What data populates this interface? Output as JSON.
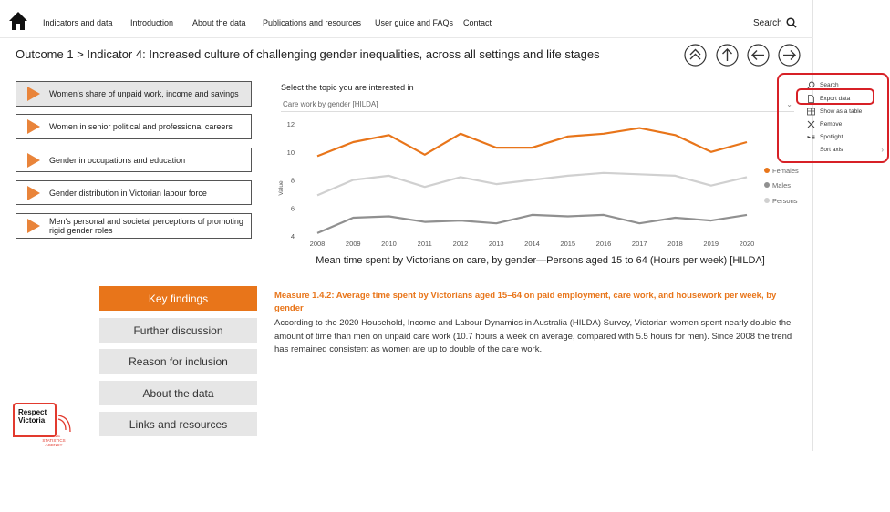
{
  "nav": {
    "home_icon": "home-icon",
    "items": [
      "Indicators and data",
      "Introduction",
      "About the data",
      "Publications and resources",
      "User guide and FAQs",
      "Contact"
    ],
    "search_label": "Search"
  },
  "breadcrumb": "Outcome 1 > Indicator 4: Increased culture of challenging gender inequalities, across all settings and life stages",
  "nav_buttons": [
    "double-chevron-up-icon",
    "arrow-up-icon",
    "arrow-left-icon",
    "arrow-right-icon"
  ],
  "topics": [
    {
      "label": "Women's share of unpaid work, income and savings",
      "active": true
    },
    {
      "label": "Women in senior political and professional careers",
      "active": false
    },
    {
      "label": "Gender in occupations and education",
      "active": false
    },
    {
      "label": "Gender distribution in Victorian labour force",
      "active": false
    },
    {
      "label": "Men's personal and societal perceptions of promoting rigid gender roles",
      "active": false
    }
  ],
  "topic_select": {
    "label": "Select the topic you are interested in",
    "value": "Care work by gender [HILDA]"
  },
  "chart_caption": "Mean time spent by Victorians on care, by gender—Persons aged 15 to 64 (Hours per week) [HILDA]",
  "chart_data": {
    "type": "line",
    "x": [
      2008,
      2009,
      2010,
      2011,
      2012,
      2013,
      2014,
      2015,
      2016,
      2017,
      2018,
      2019,
      2020
    ],
    "series": [
      {
        "name": "Females",
        "color": "#e8751a",
        "values": [
          9.7,
          10.7,
          11.2,
          9.8,
          11.3,
          10.3,
          10.3,
          11.1,
          11.3,
          11.7,
          11.2,
          10.0,
          10.7
        ]
      },
      {
        "name": "Males",
        "color": "#909090",
        "values": [
          4.2,
          5.3,
          5.4,
          5.0,
          5.1,
          4.9,
          5.5,
          5.4,
          5.5,
          4.9,
          5.3,
          5.1,
          5.5
        ]
      },
      {
        "name": "Persons",
        "color": "#d0d0d0",
        "values": [
          6.9,
          8.0,
          8.3,
          7.5,
          8.2,
          7.7,
          8.0,
          8.3,
          8.5,
          8.4,
          8.3,
          7.6,
          8.2
        ]
      }
    ],
    "ylabel": "Value",
    "yticks": [
      4,
      6,
      8,
      10,
      12
    ],
    "ylim": [
      4,
      12
    ],
    "grid": false,
    "legend": "right"
  },
  "side_nav": [
    {
      "label": "Key findings",
      "active": true
    },
    {
      "label": "Further discussion",
      "active": false
    },
    {
      "label": "Reason for inclusion",
      "active": false
    },
    {
      "label": "About the data",
      "active": false
    },
    {
      "label": "Links and resources",
      "active": false
    }
  ],
  "measure": {
    "title": "Measure 1.4.2: Average time spent by Victorians aged 15–64 on paid employment, care work, and housework per week, by gender",
    "body": "According to the 2020 Household, Income and Labour Dynamics in Australia (HILDA) Survey, Victorian women spent nearly double the amount of time than men on unpaid care work (10.7 hours a week on average, compared with 5.5 hours for men). Since 2008 the trend has remained consistent as women are up to double of the care work."
  },
  "logo": {
    "text_line1": "Respect",
    "text_line2": "Victoria",
    "sub": "CRIME STATISTICS AGENCY"
  },
  "context_menu": {
    "items": [
      {
        "label": "Search",
        "icon": "search-icon"
      },
      {
        "label": "Export data",
        "icon": "document-icon"
      },
      {
        "label": "Show as a table",
        "icon": "table-icon"
      },
      {
        "label": "Remove",
        "icon": "close-icon"
      },
      {
        "label": "Spotlight",
        "icon": "spotlight-icon"
      },
      {
        "label": "Sort axis",
        "icon": "",
        "submenu": true
      }
    ]
  },
  "highlight_color": "#d72026",
  "accent_color": "#e8751a"
}
